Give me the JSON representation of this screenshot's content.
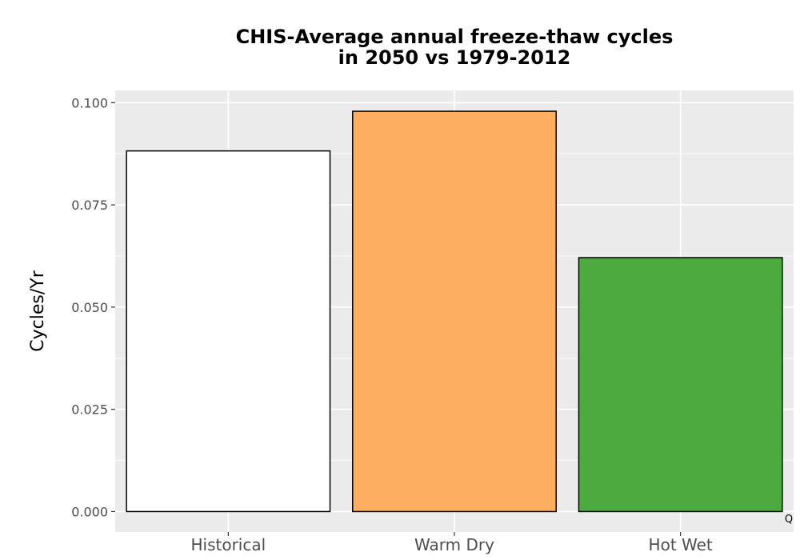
{
  "chart_data": {
    "type": "bar",
    "title_lines": [
      "CHIS-Average annual freeze-thaw cycles",
      "in 2050 vs 1979-2012"
    ],
    "xlabel": "",
    "ylabel": "Cycles/Yr",
    "categories": [
      "Historical",
      "Warm Dry",
      "Hot Wet"
    ],
    "values": [
      0.0882,
      0.0979,
      0.0621
    ],
    "colors": [
      "#ffffff",
      "#fdae61",
      "#4daa3e"
    ],
    "ylim": [
      -0.005,
      0.103
    ],
    "yticks": [
      0.0,
      0.025,
      0.05,
      0.075,
      0.1
    ],
    "ytick_labels": [
      "0.000",
      "0.025",
      "0.050",
      "0.075",
      "0.100"
    ],
    "grid": true,
    "panel_background": "#ebebeb",
    "corner_label": "Q"
  }
}
